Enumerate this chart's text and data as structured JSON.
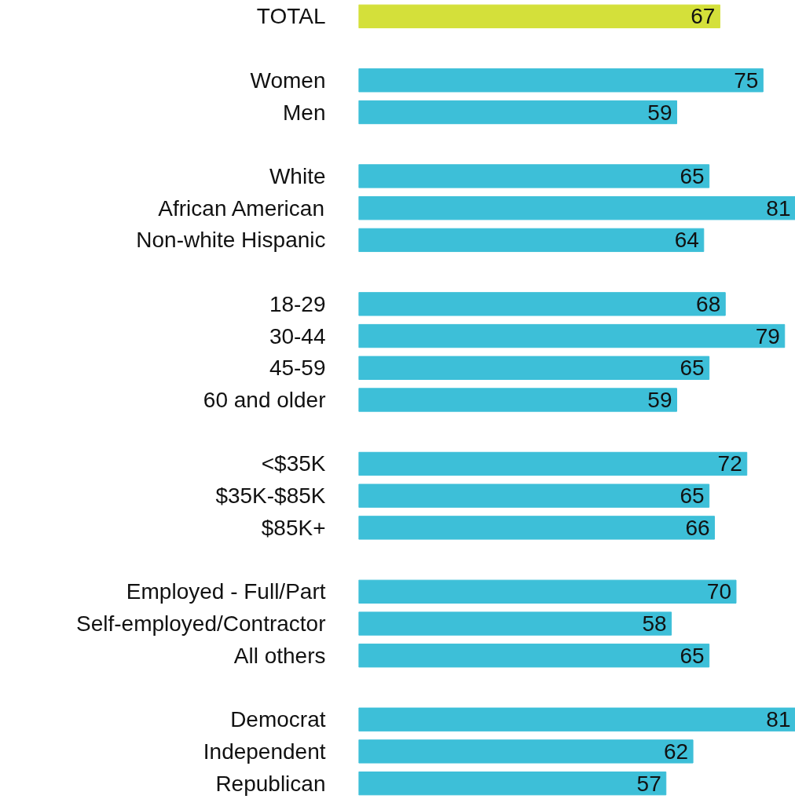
{
  "chart_data": {
    "type": "bar",
    "orientation": "horizontal",
    "categories": [
      "TOTAL",
      null,
      "Women",
      "Men",
      null,
      "White",
      "African American",
      "Non-white Hispanic",
      null,
      "18-29",
      "30-44",
      "45-59",
      "60 and older",
      null,
      "<$35K",
      "$35K-$85K",
      "$85K+",
      null,
      "Employed - Full/Part",
      "Self-employed/Contractor",
      "All others",
      null,
      "Democrat",
      "Independent",
      "Republican"
    ],
    "values": [
      67,
      null,
      75,
      59,
      null,
      65,
      81,
      64,
      null,
      68,
      79,
      65,
      59,
      null,
      72,
      65,
      66,
      null,
      70,
      58,
      65,
      null,
      81,
      62,
      57
    ],
    "colors": [
      "#d4e03a",
      null,
      "#3dbfd8",
      "#3dbfd8",
      null,
      "#3dbfd8",
      "#3dbfd8",
      "#3dbfd8",
      null,
      "#3dbfd8",
      "#3dbfd8",
      "#3dbfd8",
      "#3dbfd8",
      null,
      "#3dbfd8",
      "#3dbfd8",
      "#3dbfd8",
      null,
      "#3dbfd8",
      "#3dbfd8",
      "#3dbfd8",
      null,
      "#3dbfd8",
      "#3dbfd8",
      "#3dbfd8"
    ],
    "xlim": [
      0,
      81
    ],
    "data_labels": true,
    "tick_labels": "y",
    "grid": false
  }
}
